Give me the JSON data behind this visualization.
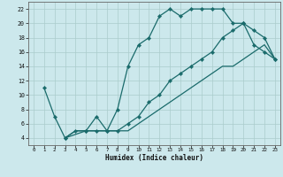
{
  "xlabel": "Humidex (Indice chaleur)",
  "bg_color": "#cce8ec",
  "grid_color": "#aacccc",
  "line_color": "#1a6b6b",
  "xlim": [
    -0.5,
    23.5
  ],
  "ylim": [
    3,
    23
  ],
  "xticks": [
    0,
    1,
    2,
    3,
    4,
    5,
    6,
    7,
    8,
    9,
    10,
    11,
    12,
    13,
    14,
    15,
    16,
    17,
    18,
    19,
    20,
    21,
    22,
    23
  ],
  "yticks": [
    4,
    6,
    8,
    10,
    12,
    14,
    16,
    18,
    20,
    22
  ],
  "curve1_x": [
    1,
    2,
    3,
    5,
    6,
    7,
    8,
    9,
    10,
    11,
    12,
    13,
    14,
    15,
    16,
    17,
    18,
    19,
    20,
    21,
    22,
    23
  ],
  "curve1_y": [
    11,
    7,
    4,
    5,
    7,
    5,
    8,
    14,
    17,
    18,
    21,
    22,
    21,
    22,
    22,
    22,
    22,
    20,
    20,
    17,
    16,
    15
  ],
  "curve2_x": [
    3,
    4,
    5,
    6,
    7,
    8,
    9,
    10,
    11,
    12,
    13,
    14,
    15,
    16,
    17,
    18,
    19,
    20,
    21,
    22,
    23
  ],
  "curve2_y": [
    4,
    5,
    5,
    5,
    5,
    5,
    5,
    6,
    7,
    8,
    9,
    10,
    11,
    12,
    13,
    14,
    14,
    15,
    16,
    17,
    15
  ],
  "curve3_x": [
    3,
    4,
    5,
    6,
    7,
    8,
    9,
    10,
    11,
    12,
    13,
    14,
    15,
    16,
    17,
    18,
    19,
    20,
    21,
    22,
    23
  ],
  "curve3_y": [
    4,
    5,
    5,
    5,
    5,
    5,
    6,
    7,
    9,
    10,
    12,
    13,
    14,
    15,
    16,
    18,
    19,
    20,
    19,
    18,
    15
  ]
}
